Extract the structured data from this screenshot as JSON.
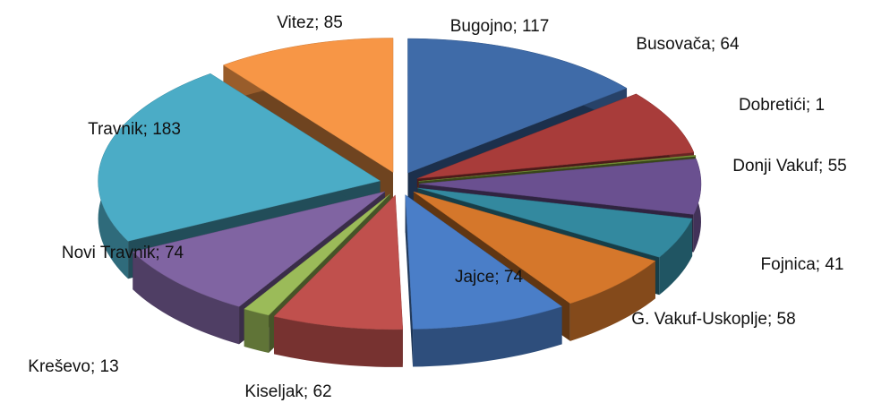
{
  "chart_data": {
    "type": "pie3d",
    "values": [
      117,
      64,
      1,
      55,
      41,
      58,
      74,
      62,
      13,
      74,
      183,
      85
    ],
    "value_labels": [
      "Bugojno; 117",
      "Busovača; 64",
      "Dobretići; 1",
      "Donji Vakuf; 55",
      "Fojnica; 41",
      "G. Vakuf-Uskoplje; 58",
      "Jajce; 74",
      "Kiseljak; 62",
      "Kreševo; 13",
      "Novi Travnik; 74",
      "Travnik; 183",
      "Vitez; 85"
    ],
    "colors": [
      "#3f6ba8",
      "#a83c3a",
      "#7f9b3b",
      "#6a5090",
      "#33899f",
      "#d5772b",
      "#4a7ec8",
      "#c0504d",
      "#9bbb59",
      "#8064a2",
      "#4bacc6",
      "#f79646"
    ]
  }
}
